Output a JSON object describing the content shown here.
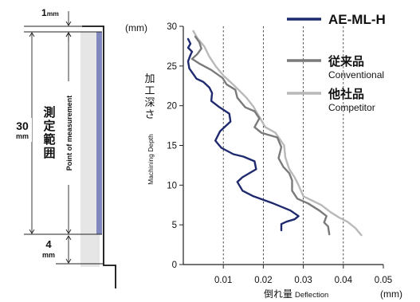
{
  "diagram": {
    "dim_top": {
      "value": "1",
      "unit": "mm"
    },
    "dim_range": {
      "value": "30",
      "unit": "mm"
    },
    "dim_bottom": {
      "value": "4",
      "unit": "mm"
    },
    "range_label_ja": [
      "測",
      "定",
      "範",
      "囲"
    ],
    "measurement_label": "Point of measurement"
  },
  "chart_data": {
    "type": "line",
    "title": "",
    "xlabel": {
      "ja": "倒れ量",
      "en": "Deflection"
    },
    "ylabel": {
      "ja": [
        "加",
        "工",
        "深",
        "さ"
      ],
      "en": "Machining Depth"
    },
    "x_unit": "(mm)",
    "y_unit": "(mm)",
    "xlim": [
      0,
      0.05
    ],
    "ylim": [
      0,
      30
    ],
    "x_ticks": [
      "0.01",
      "0.02",
      "0.03",
      "0.04",
      "0.05"
    ],
    "y_ticks": [
      "0",
      "5",
      "10",
      "15",
      "20",
      "25",
      "30"
    ],
    "grid": "vertical dashed",
    "legend_position": "top-right",
    "series": [
      {
        "name": "AE-ML-H",
        "name_sub": "",
        "color": "#1f2a6e",
        "width": 2.4,
        "points": [
          [
            0.0245,
            4.3
          ],
          [
            0.0245,
            5.1
          ],
          [
            0.0258,
            5.4
          ],
          [
            0.0278,
            5.7
          ],
          [
            0.0288,
            6.1
          ],
          [
            0.0268,
            6.8
          ],
          [
            0.0225,
            7.7
          ],
          [
            0.0175,
            8.6
          ],
          [
            0.0148,
            9.3
          ],
          [
            0.0135,
            10.4
          ],
          [
            0.0148,
            11.0
          ],
          [
            0.0182,
            12.0
          ],
          [
            0.0178,
            13.0
          ],
          [
            0.015,
            13.6
          ],
          [
            0.0125,
            13.9
          ],
          [
            0.0095,
            14.7
          ],
          [
            0.008,
            15.6
          ],
          [
            0.0092,
            16.8
          ],
          [
            0.0118,
            18.0
          ],
          [
            0.0115,
            19.0
          ],
          [
            0.0088,
            19.9
          ],
          [
            0.007,
            20.6
          ],
          [
            0.0072,
            21.6
          ],
          [
            0.0065,
            22.3
          ],
          [
            0.005,
            23.0
          ],
          [
            0.0033,
            23.4
          ],
          [
            0.0015,
            24.7
          ],
          [
            0.0012,
            25.6
          ],
          [
            0.0018,
            26.4
          ],
          [
            0.0022,
            26.8
          ],
          [
            0.0012,
            27.3
          ],
          [
            0.0018,
            27.8
          ],
          [
            0.0012,
            28.4
          ]
        ]
      },
      {
        "name": "従来品",
        "name_sub": "Conventional",
        "color": "#7a7a7a",
        "width": 2.4,
        "points": [
          [
            0.0365,
            3.8
          ],
          [
            0.0362,
            4.8
          ],
          [
            0.0352,
            5.3
          ],
          [
            0.0358,
            6.1
          ],
          [
            0.034,
            6.8
          ],
          [
            0.0312,
            7.7
          ],
          [
            0.0285,
            8.3
          ],
          [
            0.0272,
            9.3
          ],
          [
            0.0272,
            10.6
          ],
          [
            0.0265,
            11.5
          ],
          [
            0.025,
            12.3
          ],
          [
            0.0238,
            13.4
          ],
          [
            0.0245,
            14.8
          ],
          [
            0.0235,
            16.0
          ],
          [
            0.0195,
            16.6
          ],
          [
            0.0178,
            17.3
          ],
          [
            0.019,
            18.4
          ],
          [
            0.0178,
            19.3
          ],
          [
            0.0155,
            19.8
          ],
          [
            0.0135,
            21.0
          ],
          [
            0.013,
            22.0
          ],
          [
            0.0108,
            22.7
          ],
          [
            0.0098,
            23.5
          ],
          [
            0.007,
            24.5
          ],
          [
            0.004,
            25.3
          ],
          [
            0.0022,
            25.9
          ],
          [
            0.0035,
            26.5
          ],
          [
            0.0045,
            27.2
          ],
          [
            0.004,
            28.0
          ],
          [
            0.003,
            28.7
          ]
        ]
      },
      {
        "name": "他社品",
        "name_sub": "Competitor",
        "color": "#b9b9b9",
        "width": 2.4,
        "points": [
          [
            0.0445,
            3.7
          ],
          [
            0.043,
            4.6
          ],
          [
            0.041,
            5.4
          ],
          [
            0.039,
            5.9
          ],
          [
            0.0368,
            6.6
          ],
          [
            0.0345,
            7.5
          ],
          [
            0.03,
            8.6
          ],
          [
            0.0288,
            10.0
          ],
          [
            0.0278,
            11.0
          ],
          [
            0.0265,
            12.0
          ],
          [
            0.0255,
            13.5
          ],
          [
            0.0252,
            15.0
          ],
          [
            0.023,
            16.6
          ],
          [
            0.0205,
            17.3
          ],
          [
            0.019,
            18.6
          ],
          [
            0.0175,
            19.9
          ],
          [
            0.0158,
            21.0
          ],
          [
            0.0142,
            21.8
          ],
          [
            0.0122,
            22.8
          ],
          [
            0.01,
            23.8
          ],
          [
            0.0082,
            24.9
          ],
          [
            0.0065,
            26.2
          ],
          [
            0.0052,
            27.5
          ],
          [
            0.0035,
            28.5
          ],
          [
            0.0025,
            29.4
          ]
        ]
      }
    ]
  }
}
